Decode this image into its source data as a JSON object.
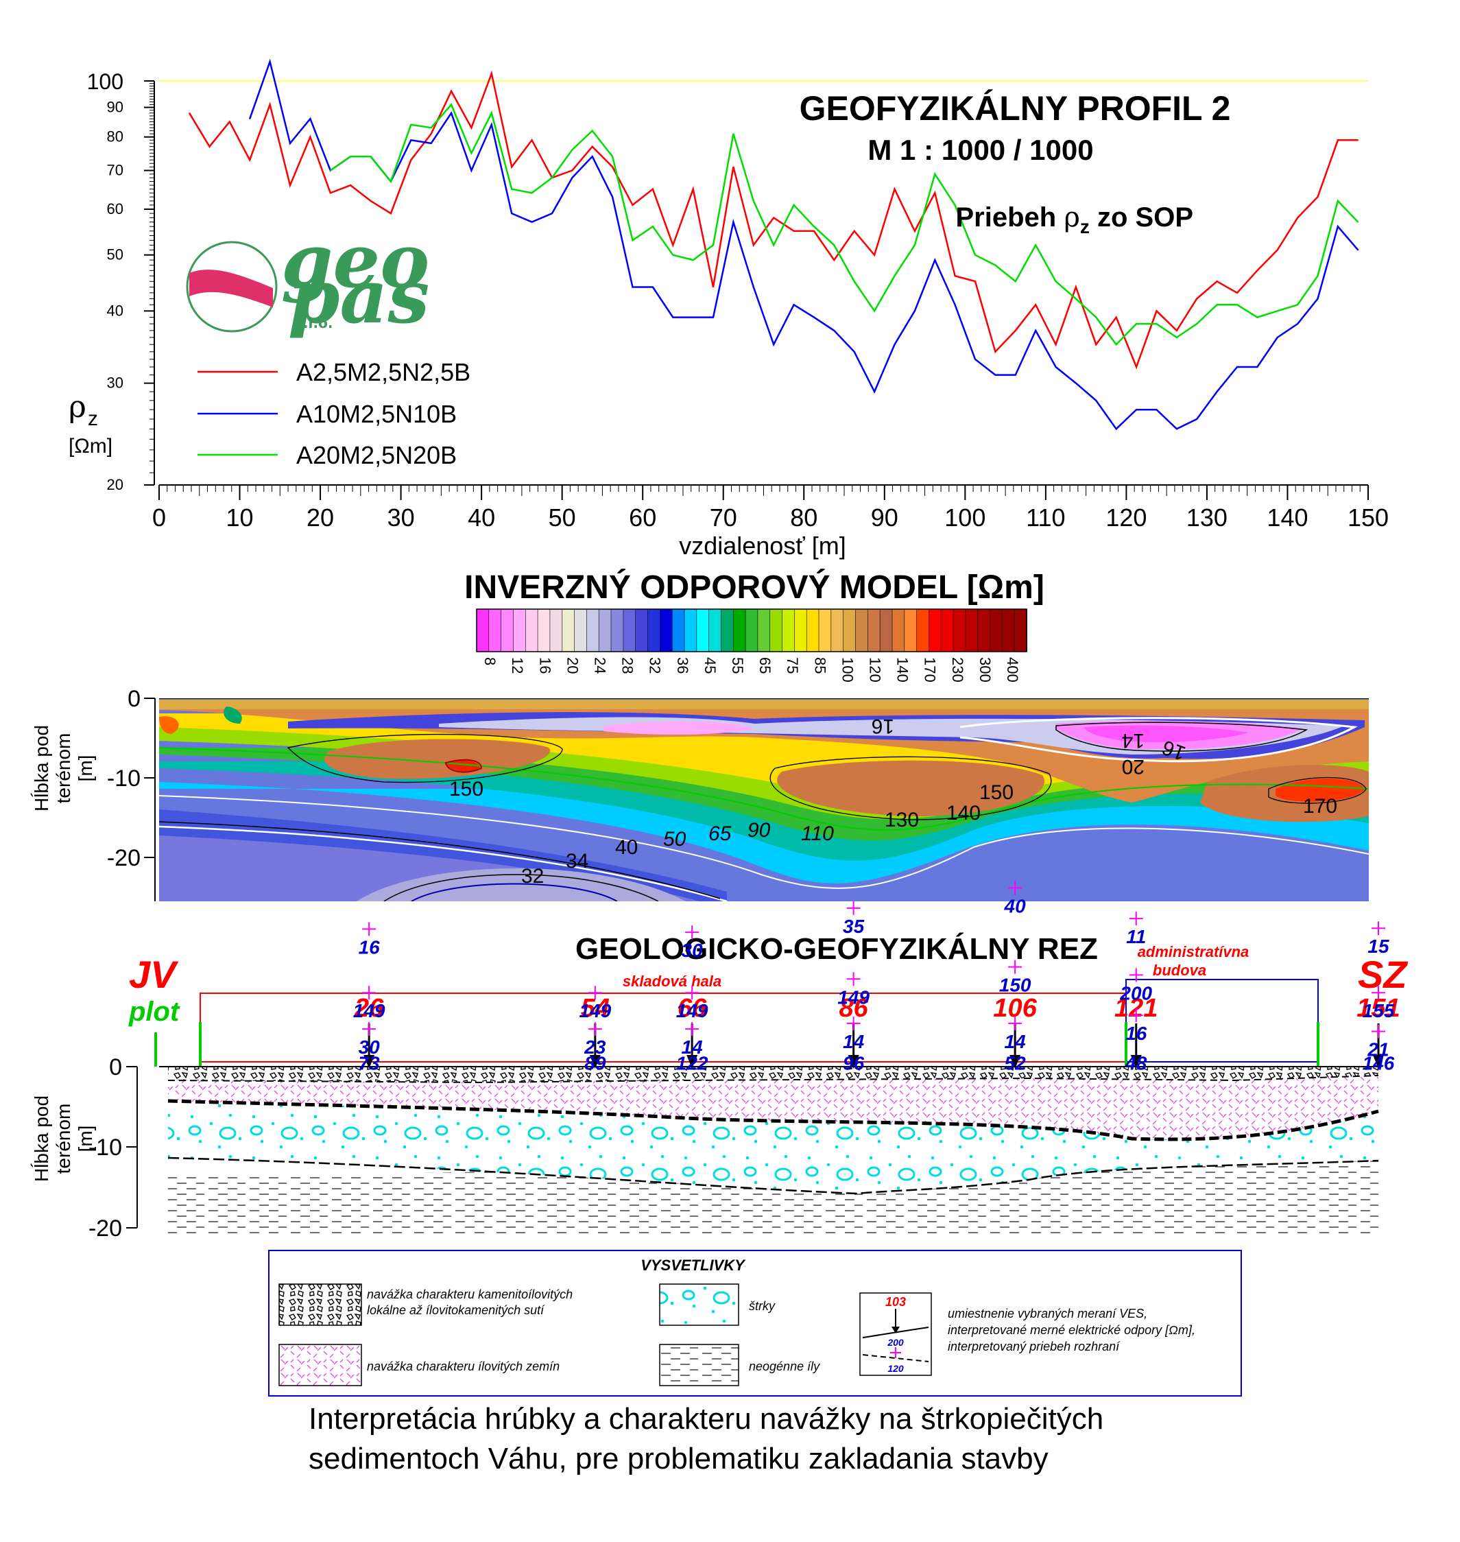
{
  "header": {
    "title": "GEOFYZIKÁLNY PROFIL 2",
    "scale": "M 1 : 1000 / 1000",
    "subtitle_prefix": "Priebeh ",
    "subtitle_rho": "ρ",
    "subtitle_sub": "z",
    "subtitle_suffix": " zo SOP"
  },
  "logo": {
    "line1": "geo",
    "line2": "pas",
    "suffix": "s.r.o."
  },
  "colors": {
    "series_red": "#ff0000",
    "series_blue": "#0000ff",
    "series_green": "#00dd00",
    "text_red": "#ff0000",
    "text_green": "#00cc00",
    "value_blue": "#0000cc",
    "cross": "#ff00ff",
    "refline": "#ffff66",
    "logo_green": "#3a9a5a",
    "logo_pink": "#e0306a"
  },
  "chart_data": [
    {
      "type": "line",
      "title": "GEOFYZIKÁLNY PROFIL 2",
      "xlabel": "vzdialenosť [m]",
      "ylabel": "ρz [Ωm]",
      "ylabel_rho": "ρ",
      "ylabel_sub": "z",
      "ylabel_unit": "[Ωm]",
      "yscale": "log",
      "xlim": [
        0,
        150
      ],
      "ylim": [
        20,
        100
      ],
      "xticks": [
        0,
        10,
        20,
        30,
        40,
        50,
        60,
        70,
        80,
        90,
        100,
        110,
        120,
        130,
        140,
        150
      ],
      "yticks": [
        20,
        30,
        40,
        50,
        60,
        70,
        80,
        90,
        100
      ],
      "legend": "bottom-left",
      "series": [
        {
          "name": "A2,5M2,5N2,5B",
          "x": [
            3.75,
            6.25,
            8.75,
            11.25,
            13.75,
            16.25,
            18.75,
            21.25,
            23.75,
            26.25,
            28.75,
            31.25,
            33.75,
            36.25,
            38.75,
            41.25,
            43.75,
            46.25,
            48.75,
            51.25,
            53.75,
            56.25,
            58.75,
            61.25,
            63.75,
            66.25,
            68.75,
            71.25,
            73.75,
            76.25,
            78.75,
            81.25,
            83.75,
            86.25,
            88.75,
            91.25,
            93.75,
            96.25,
            98.75,
            101.25,
            103.75,
            106.25,
            108.75,
            111.25,
            113.75,
            116.25,
            118.75,
            121.25,
            123.75,
            126.25,
            128.75,
            131.25,
            133.75,
            136.25,
            138.75,
            141.25,
            143.75,
            146.25,
            148.75
          ],
          "values": [
            88,
            77,
            85,
            73,
            91,
            66,
            80,
            64,
            66,
            62,
            59,
            73,
            81,
            96,
            83,
            103,
            71,
            79,
            68,
            70,
            77,
            71,
            61,
            65,
            52,
            65,
            44,
            71,
            52,
            58,
            55,
            55,
            49,
            55,
            50,
            65,
            55,
            64,
            46,
            45,
            34,
            37,
            41,
            35,
            44,
            35,
            39,
            32,
            40,
            37,
            42,
            45,
            43,
            47,
            51,
            58,
            63,
            79,
            79
          ]
        },
        {
          "name": "A10M2,5N10B",
          "x": [
            11.25,
            13.75,
            16.25,
            18.75,
            21.25,
            23.75,
            26.25,
            28.75,
            31.25,
            33.75,
            36.25,
            38.75,
            41.25,
            43.75,
            46.25,
            48.75,
            51.25,
            53.75,
            56.25,
            58.75,
            61.25,
            63.75,
            66.25,
            68.75,
            71.25,
            73.75,
            76.25,
            78.75,
            81.25,
            83.75,
            86.25,
            88.75,
            91.25,
            93.75,
            96.25,
            98.75,
            101.25,
            103.75,
            106.25,
            108.75,
            111.25,
            113.75,
            116.25,
            118.75,
            121.25,
            123.75,
            126.25,
            128.75,
            131.25,
            133.75,
            136.25,
            138.75,
            141.25,
            143.75,
            146.25,
            148.75
          ],
          "values": [
            86,
            108,
            78,
            86,
            70,
            74,
            74,
            67,
            79,
            78,
            88,
            70,
            84,
            59,
            57,
            59,
            68,
            74,
            63,
            44,
            44,
            39,
            39,
            39,
            57,
            44,
            35,
            41,
            39,
            37,
            34,
            29,
            35,
            40,
            49,
            41,
            33,
            31,
            31,
            37,
            32,
            30,
            28,
            25,
            27,
            27,
            25,
            26,
            29,
            32,
            32,
            36,
            38,
            42,
            56,
            51
          ]
        },
        {
          "name": "A20M2,5N20B",
          "x": [
            21.25,
            23.75,
            26.25,
            28.75,
            31.25,
            33.75,
            36.25,
            38.75,
            41.25,
            43.75,
            46.25,
            48.75,
            51.25,
            53.75,
            56.25,
            58.75,
            61.25,
            63.75,
            66.25,
            68.75,
            71.25,
            73.75,
            76.25,
            78.75,
            81.25,
            83.75,
            86.25,
            88.75,
            91.25,
            93.75,
            96.25,
            98.75,
            101.25,
            103.75,
            106.25,
            108.75,
            111.25,
            113.75,
            116.25,
            118.75,
            121.25,
            123.75,
            126.25,
            128.75,
            131.25,
            133.75,
            136.25,
            138.75,
            141.25,
            143.75,
            146.25,
            148.75
          ],
          "values": [
            70,
            74,
            74,
            67,
            84,
            83,
            91,
            75,
            88,
            65,
            64,
            68,
            76,
            82,
            74,
            53,
            56,
            50,
            49,
            52,
            81,
            62,
            52,
            61,
            56,
            52,
            45,
            40,
            46,
            52,
            69,
            61,
            50,
            48,
            45,
            52,
            45,
            42,
            39,
            35,
            38,
            38,
            36,
            38,
            41,
            41,
            39,
            40,
            41,
            46,
            62,
            57
          ]
        }
      ]
    },
    {
      "type": "heatmap",
      "title": "INVERZNÝ ODPOROVÝ MODEL [Ωm]",
      "ylabel": "Hĺbka pod terénom [m]",
      "ylabel_line1": "Hĺbka pod",
      "ylabel_line2": "terénom",
      "ylabel_unit": "[m]",
      "ylim": [
        -25,
        0
      ],
      "yticks": [
        0,
        -10,
        -20
      ],
      "colorbar_ticks": [
        "8",
        "12",
        "16",
        "20",
        "24",
        "28",
        "32",
        "36",
        "45",
        "55",
        "65",
        "75",
        "85",
        "100",
        "120",
        "140",
        "170",
        "230",
        "300",
        "400"
      ],
      "colorbar_colors": [
        "#ff33ff",
        "#ff66ff",
        "#ff88ff",
        "#ffaaff",
        "#ffccf0",
        "#ffdde8",
        "#f4d8e4",
        "#eeeecc",
        "#e0e0e0",
        "#c8c8e8",
        "#aaaadd",
        "#8888dd",
        "#6666dd",
        "#4444dd",
        "#2233dd",
        "#0000dd",
        "#0088ff",
        "#00ccff",
        "#00ffff",
        "#00dddd",
        "#00aa66",
        "#00aa00",
        "#33bb33",
        "#66cc33",
        "#99dd00",
        "#ccee00",
        "#eeee00",
        "#ffdd00",
        "#ffcc44",
        "#eebb55",
        "#ddaa44",
        "#cc8844",
        "#cc7744",
        "#bb6644",
        "#dd7733",
        "#ff8833",
        "#ff4400",
        "#ff0000",
        "#ee0000",
        "#cc0000",
        "#bb0000",
        "#aa0000",
        "#990000",
        "#990000",
        "#990000"
      ],
      "contour_labels": [
        "150",
        "16",
        "14",
        "20",
        "16",
        "150",
        "140",
        "130",
        "110",
        "90",
        "65",
        "50",
        "40",
        "34",
        "32",
        "170"
      ]
    },
    {
      "type": "cross-section",
      "title": "GEOLOGICKO-GEOFYZIKÁLNY REZ",
      "ylabel_line1": "Hĺbka pod",
      "ylabel_line2": "terénom",
      "ylabel_unit": "[m]",
      "ylim": [
        -20,
        0
      ],
      "yticks": [
        0,
        -10,
        -20
      ],
      "left_label": "JV",
      "left_sub": "plot",
      "right_label": "SZ",
      "building1": "skladová hala",
      "building2_l1": "administratívna",
      "building2_l2": "budova",
      "soundings": [
        {
          "x": 26,
          "label": "26",
          "values": [
            "73",
            "30",
            "149",
            "16"
          ],
          "depths": [
            -0.8,
            -2.8,
            -7.3,
            -15.2
          ]
        },
        {
          "x": 54,
          "label": "54",
          "values": [
            "89",
            "23",
            "149"
          ],
          "depths": [
            -0.8,
            -2.8,
            -7.3
          ]
        },
        {
          "x": 66,
          "label": "66",
          "values": [
            "122",
            "14",
            "149",
            "30"
          ],
          "depths": [
            -0.8,
            -2.8,
            -7.3,
            -14.8
          ]
        },
        {
          "x": 86,
          "label": "86",
          "values": [
            "96",
            "14",
            "149",
            "35"
          ],
          "depths": [
            -0.8,
            -3.5,
            -9.0,
            -17.8
          ]
        },
        {
          "x": 106,
          "label": "106",
          "values": [
            "52",
            "14",
            "150",
            "40"
          ],
          "depths": [
            -0.8,
            -3.5,
            -10.5,
            -20.3
          ]
        },
        {
          "x": 121,
          "label": "121",
          "values": [
            "48",
            "16",
            "200",
            "11"
          ],
          "depths": [
            -0.8,
            -4.5,
            -9.5,
            -16.5
          ]
        },
        {
          "x": 151,
          "label": "151",
          "values": [
            "146",
            "21",
            "155",
            "15"
          ],
          "depths": [
            -0.8,
            -2.5,
            -7.3,
            -15.3
          ]
        }
      ]
    }
  ],
  "section2": {
    "colorbar_ticks_note": ""
  },
  "legend_box": {
    "title": "VYSVETLIVKY",
    "fill1_l1": "navážka charakteru kamenitoílovitých",
    "fill1_l2": "lokálne až ílovitokamenitých sutí",
    "fill2": "navážka charakteru ílovitých zemín",
    "gravel": "štrky",
    "clay": "neogénne íly",
    "ves_l1": "umiestnenie vybraných meraní VES,",
    "ves_l2": "interpretované merné elektrické odpory [Ωm],",
    "ves_l3": "interpretovaný priebeh rozhraní",
    "ves_top": "103",
    "ves_mid": "200",
    "ves_bot": "120"
  },
  "caption": {
    "line1": "Interpretácia hrúbky a charakteru navážky na štrkopiečitých",
    "line2": "sedimentoch Váhu, pre problematiku zakladania stavby"
  }
}
